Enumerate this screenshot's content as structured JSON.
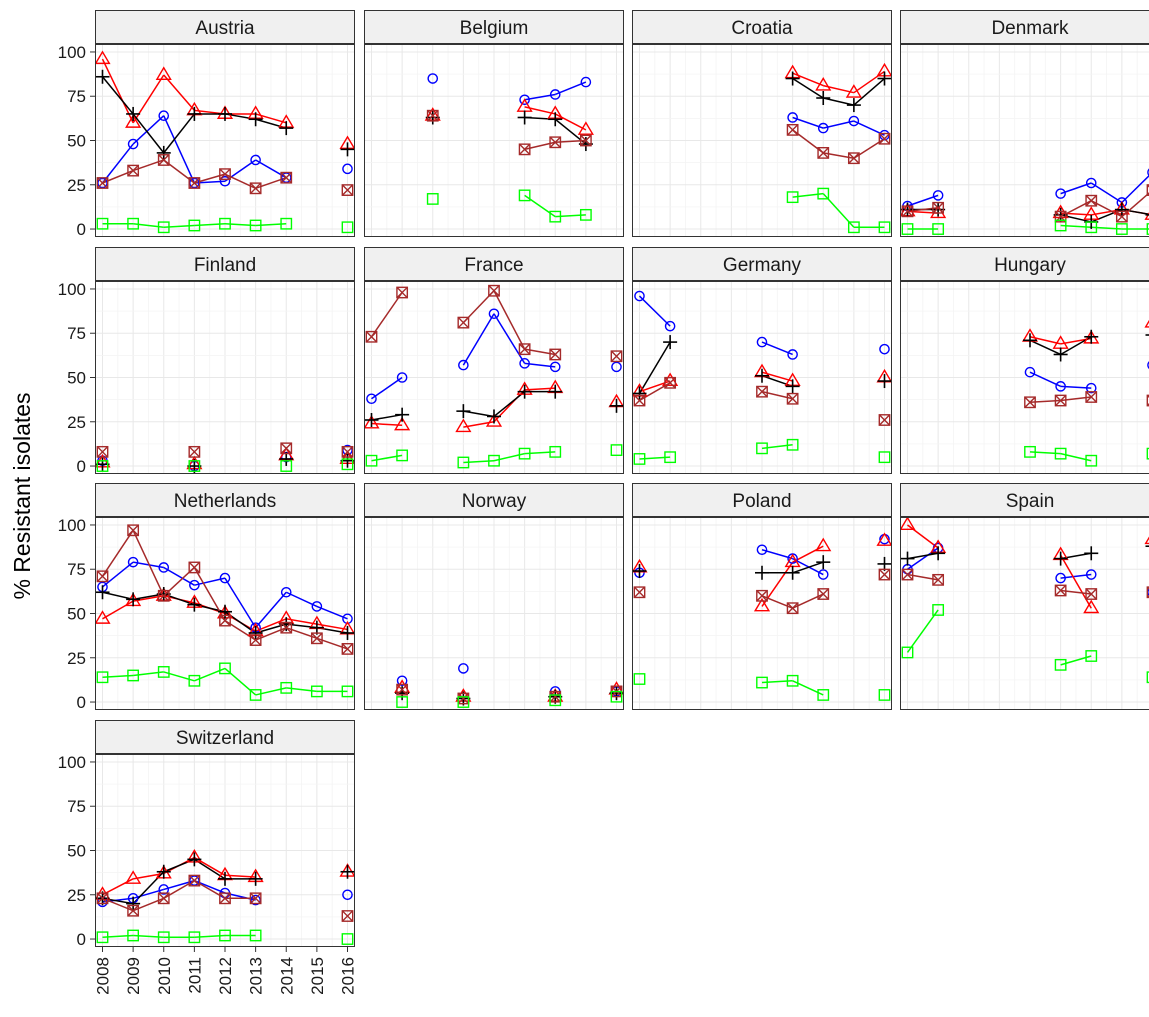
{
  "chart_data": {
    "type": "line",
    "facet": "country",
    "ylabel": "% Resistant isolates",
    "xlabel": "",
    "ylim": [
      0,
      100
    ],
    "yticks": [
      0,
      25,
      50,
      75,
      100
    ],
    "years": [
      2008,
      2009,
      2010,
      2011,
      2012,
      2013,
      2014,
      2015,
      2016
    ],
    "grid": true,
    "legend": "none",
    "series_styles": [
      {
        "key": "s1",
        "color": "#0000ff",
        "marker": "circle"
      },
      {
        "key": "s2",
        "color": "#ff0000",
        "marker": "triangle"
      },
      {
        "key": "s3",
        "color": "#000000",
        "marker": "plus"
      },
      {
        "key": "s4",
        "color": "#a52a2a",
        "marker": "boxx"
      },
      {
        "key": "s5",
        "color": "#00ff00",
        "marker": "square"
      }
    ],
    "panels": [
      {
        "country": "Austria",
        "s1": [
          26,
          48,
          64,
          26,
          27,
          39,
          29,
          null,
          34
        ],
        "s2": [
          96,
          60,
          87,
          67,
          65,
          65,
          60,
          null,
          48
        ],
        "s3": [
          86,
          65,
          43,
          65,
          65,
          62,
          57,
          null,
          45
        ],
        "s4": [
          26,
          33,
          39,
          26,
          31,
          23,
          29,
          null,
          22
        ],
        "s5": [
          3,
          3,
          1,
          2,
          3,
          2,
          3,
          null,
          1
        ]
      },
      {
        "country": "Belgium",
        "s1": [
          null,
          null,
          85,
          null,
          null,
          73,
          76,
          83,
          null
        ],
        "s2": [
          null,
          null,
          64,
          null,
          null,
          69,
          65,
          56,
          null
        ],
        "s3": [
          null,
          null,
          63,
          null,
          null,
          63,
          62,
          48,
          null
        ],
        "s4": [
          null,
          null,
          64,
          null,
          null,
          45,
          49,
          50,
          null
        ],
        "s5": [
          null,
          null,
          17,
          null,
          null,
          19,
          7,
          8,
          null
        ]
      },
      {
        "country": "Croatia",
        "s1": [
          null,
          null,
          null,
          null,
          null,
          63,
          57,
          61,
          53
        ],
        "s2": [
          null,
          null,
          null,
          null,
          null,
          88,
          81,
          77,
          89
        ],
        "s3": [
          null,
          null,
          null,
          null,
          null,
          85,
          74,
          70,
          85
        ],
        "s4": [
          null,
          null,
          null,
          null,
          null,
          56,
          43,
          40,
          51
        ],
        "s5": [
          null,
          null,
          null,
          null,
          null,
          18,
          20,
          1,
          1
        ]
      },
      {
        "country": "Denmark",
        "s1": [
          13,
          19,
          null,
          null,
          null,
          20,
          26,
          15,
          32
        ],
        "s2": [
          10,
          9,
          null,
          null,
          null,
          9,
          8,
          11,
          8
        ],
        "s3": [
          11,
          11,
          null,
          null,
          null,
          8,
          4,
          11,
          8
        ],
        "s4": [
          10,
          12,
          null,
          null,
          null,
          7,
          16,
          7,
          22
        ],
        "s5": [
          0,
          0,
          null,
          null,
          null,
          2,
          1,
          0,
          0
        ]
      },
      {
        "country": "Finland",
        "s1": [
          3,
          null,
          null,
          0,
          null,
          null,
          5,
          null,
          9
        ],
        "s2": [
          2,
          null,
          null,
          1,
          null,
          null,
          6,
          null,
          4
        ],
        "s3": [
          1,
          null,
          null,
          0,
          null,
          null,
          4,
          null,
          3
        ],
        "s4": [
          8,
          null,
          null,
          8,
          null,
          null,
          10,
          null,
          8
        ],
        "s5": [
          0,
          null,
          null,
          0,
          null,
          null,
          0,
          null,
          1
        ]
      },
      {
        "country": "France",
        "s1": [
          38,
          50,
          null,
          57,
          86,
          58,
          56,
          null,
          56
        ],
        "s2": [
          24,
          23,
          null,
          22,
          25,
          43,
          44,
          null,
          36
        ],
        "s3": [
          26,
          29,
          null,
          31,
          28,
          42,
          42,
          null,
          34
        ],
        "s4": [
          73,
          98,
          null,
          81,
          99,
          66,
          63,
          null,
          62
        ],
        "s5": [
          3,
          6,
          null,
          2,
          3,
          7,
          8,
          null,
          9
        ]
      },
      {
        "country": "Germany",
        "s1": [
          96,
          79,
          null,
          null,
          70,
          63,
          null,
          null,
          66
        ],
        "s2": [
          42,
          48,
          null,
          null,
          53,
          48,
          null,
          null,
          50
        ],
        "s3": [
          41,
          70,
          null,
          null,
          51,
          45,
          null,
          null,
          48
        ],
        "s4": [
          37,
          47,
          null,
          null,
          42,
          38,
          null,
          null,
          26
        ],
        "s5": [
          4,
          5,
          null,
          null,
          10,
          12,
          null,
          null,
          5
        ]
      },
      {
        "country": "Hungary",
        "s1": [
          null,
          null,
          null,
          null,
          53,
          45,
          44,
          null,
          57
        ],
        "s2": [
          null,
          null,
          null,
          null,
          73,
          69,
          72,
          null,
          81
        ],
        "s3": [
          null,
          null,
          null,
          null,
          71,
          63,
          73,
          null,
          74
        ],
        "s4": [
          null,
          null,
          null,
          null,
          36,
          37,
          39,
          null,
          37
        ],
        "s5": [
          null,
          null,
          null,
          null,
          8,
          7,
          3,
          null,
          7
        ]
      },
      {
        "country": "Netherlands",
        "s1": [
          65,
          79,
          76,
          66,
          70,
          42,
          62,
          54,
          47
        ],
        "s2": [
          47,
          57,
          60,
          56,
          50,
          40,
          47,
          44,
          41
        ],
        "s3": [
          62,
          58,
          61,
          55,
          51,
          39,
          44,
          42,
          39
        ],
        "s4": [
          71,
          97,
          60,
          76,
          46,
          35,
          42,
          36,
          30
        ],
        "s5": [
          14,
          15,
          17,
          12,
          19,
          4,
          8,
          6,
          6
        ]
      },
      {
        "country": "Norway",
        "s1": [
          null,
          12,
          null,
          19,
          null,
          null,
          6,
          null,
          6
        ],
        "s2": [
          null,
          8,
          null,
          3,
          null,
          null,
          3,
          null,
          7
        ],
        "s3": [
          null,
          5,
          null,
          2,
          null,
          null,
          3,
          null,
          5
        ],
        "s4": [
          null,
          7,
          null,
          2,
          null,
          null,
          3,
          null,
          6
        ],
        "s5": [
          null,
          0,
          null,
          0,
          null,
          null,
          1,
          null,
          3
        ]
      },
      {
        "country": "Poland",
        "s1": [
          73,
          null,
          null,
          null,
          86,
          81,
          72,
          null,
          92
        ],
        "s2": [
          76,
          null,
          null,
          null,
          54,
          79,
          88,
          null,
          91
        ],
        "s3": [
          74,
          null,
          null,
          null,
          73,
          73,
          79,
          null,
          78
        ],
        "s4": [
          62,
          null,
          null,
          null,
          60,
          53,
          61,
          null,
          72
        ],
        "s5": [
          13,
          null,
          null,
          null,
          11,
          12,
          4,
          null,
          4
        ]
      },
      {
        "country": "Spain",
        "s1": [
          75,
          87,
          null,
          null,
          null,
          70,
          72,
          null,
          62
        ],
        "s2": [
          100,
          87,
          null,
          null,
          null,
          83,
          53,
          null,
          92
        ],
        "s3": [
          81,
          84,
          null,
          null,
          null,
          81,
          84,
          null,
          88
        ],
        "s4": [
          72,
          69,
          null,
          null,
          null,
          63,
          61,
          null,
          62
        ],
        "s5": [
          28,
          52,
          null,
          null,
          null,
          21,
          26,
          null,
          14
        ]
      },
      {
        "country": "Switzerland",
        "s1": [
          21,
          23,
          28,
          33,
          26,
          22,
          null,
          null,
          25
        ],
        "s2": [
          25,
          34,
          37,
          46,
          36,
          35,
          null,
          null,
          38
        ],
        "s3": [
          23,
          20,
          38,
          45,
          34,
          34,
          null,
          null,
          38
        ],
        "s4": [
          23,
          16,
          23,
          33,
          23,
          23,
          null,
          null,
          13
        ],
        "s5": [
          1,
          2,
          1,
          1,
          2,
          2,
          null,
          null,
          0
        ]
      }
    ]
  }
}
